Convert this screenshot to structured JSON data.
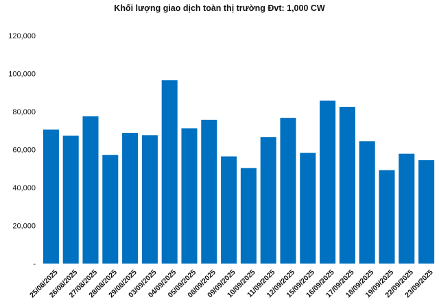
{
  "chart_data": {
    "type": "bar",
    "title": "Khối lượng giao dịch toàn thị trường Đvt: 1,000 CW",
    "xlabel": "",
    "ylabel": "",
    "categories": [
      "25/08/2025",
      "26/08/2025",
      "27/08/2025",
      "28/08/2025",
      "29/08/2025",
      "03/09/2025",
      "04/09/2025",
      "05/09/2025",
      "08/09/2025",
      "09/09/2025",
      "10/09/2025",
      "11/09/2025",
      "12/09/2025",
      "15/09/2025",
      "16/09/2025",
      "17/09/2025",
      "18/09/2025",
      "19/09/2025",
      "22/09/2025",
      "23/09/2025"
    ],
    "values": [
      70500,
      67300,
      77500,
      57200,
      68800,
      67600,
      96500,
      71200,
      75700,
      56400,
      50300,
      66600,
      76700,
      58300,
      85800,
      82500,
      64400,
      49200,
      57800,
      54400
    ],
    "ylim": [
      0,
      120000
    ],
    "yticks": [
      0,
      20000,
      40000,
      60000,
      80000,
      100000,
      120000
    ],
    "ytick_labels": [
      "-",
      "20,000",
      "40,000",
      "60,000",
      "80,000",
      "100,000",
      "120,000"
    ],
    "bar_color": "#0070C0",
    "grid": false,
    "legend": "none"
  }
}
